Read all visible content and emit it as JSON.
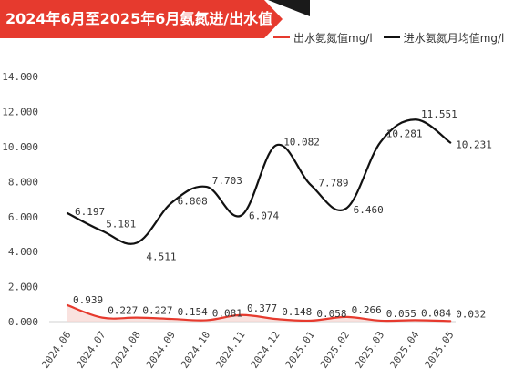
{
  "header": {
    "title": "2024年6月至2025年6月氨氮进/出水值",
    "banner_color": "#e63a2e",
    "corner_color": "#1a1a1a"
  },
  "chart_data": {
    "type": "line",
    "categories": [
      "2024.06",
      "2024.07",
      "2024.08",
      "2024.09",
      "2024.10",
      "2024.11",
      "2024.12",
      "2025.01",
      "2025.02",
      "2025.03",
      "2025.04",
      "2025.05"
    ],
    "series": [
      {
        "name": "出水氨氮值mg/l",
        "color": "#e63a2e",
        "values": [
          0.939,
          0.227,
          0.227,
          0.154,
          0.081,
          0.377,
          0.148,
          0.058,
          0.266,
          0.055,
          0.084,
          0.032
        ],
        "labels": [
          "0.939",
          "0.227",
          "0.227",
          "0.154",
          "0.081",
          "0.377",
          "0.148",
          "0.058",
          "0.266",
          "0.055",
          "0.084",
          "0.032"
        ]
      },
      {
        "name": "进水氨氮月均值mg/l",
        "color": "#111111",
        "values": [
          6.197,
          5.181,
          4.511,
          6.808,
          7.703,
          6.074,
          10.082,
          7.789,
          6.46,
          10.281,
          11.551,
          10.231
        ],
        "labels": [
          "6.197",
          "5.181",
          "4.511",
          "6.808",
          "7.703",
          "6.074",
          "10.082",
          "7.789",
          "6.460",
          "10.281",
          "11.551",
          "10.231"
        ]
      }
    ],
    "yticks": [
      "0.000",
      "2.000",
      "4.000",
      "6.000",
      "8.000",
      "10.000",
      "12.000",
      "14.000"
    ],
    "ylim": [
      0,
      14
    ],
    "grid": false,
    "legend_position": "top-right"
  }
}
